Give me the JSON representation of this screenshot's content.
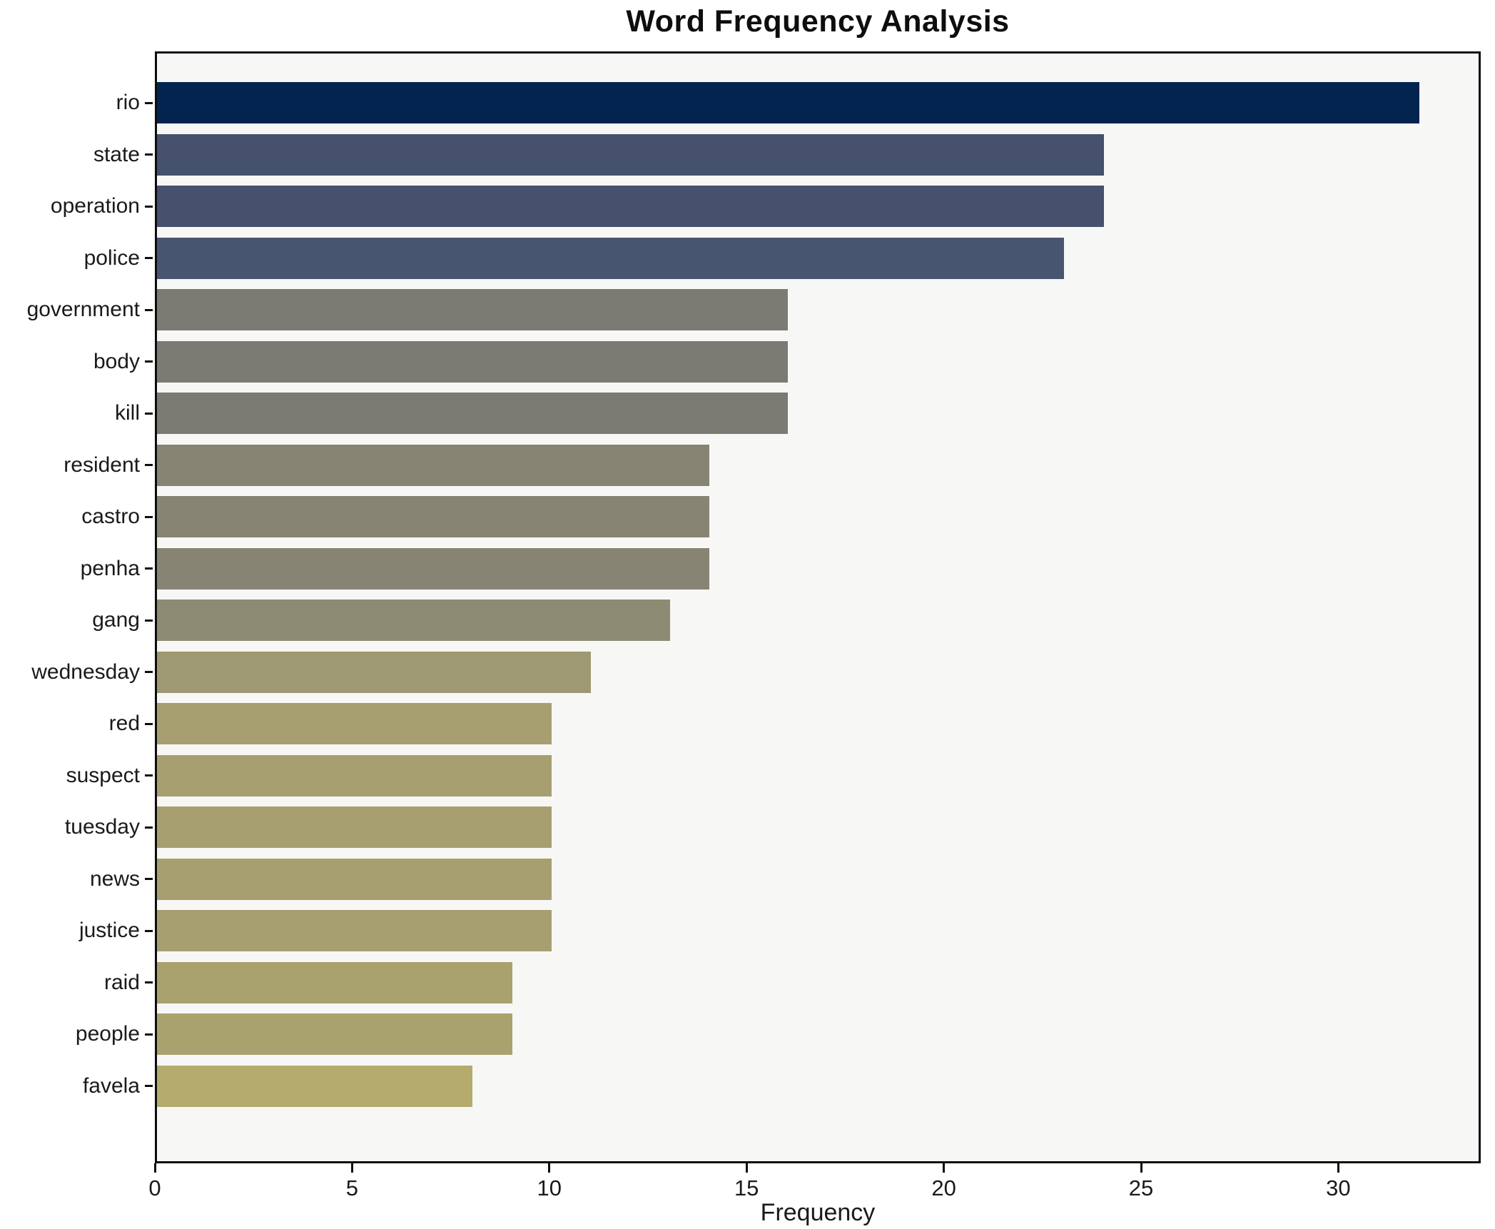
{
  "page": {
    "title": "Word Frequency Analysis"
  },
  "chart_data": {
    "type": "bar",
    "orientation": "horizontal",
    "title": "Word Frequency Analysis",
    "xlabel": "Frequency",
    "ylabel": "",
    "categories": [
      "rio",
      "state",
      "operation",
      "police",
      "government",
      "body",
      "kill",
      "resident",
      "castro",
      "penha",
      "gang",
      "wednesday",
      "red",
      "suspect",
      "tuesday",
      "news",
      "justice",
      "raid",
      "people",
      "favela"
    ],
    "values": [
      32,
      24,
      24,
      23,
      16,
      16,
      16,
      14,
      14,
      14,
      13,
      11,
      10,
      10,
      10,
      10,
      10,
      9,
      9,
      8
    ],
    "bar_colors": [
      "#02244e",
      "#45516d",
      "#45516d",
      "#475571",
      "#7b7a73",
      "#7b7a73",
      "#7b7a73",
      "#878473",
      "#878473",
      "#878473",
      "#8e8b74",
      "#9e9973",
      "#a79f70",
      "#a79f70",
      "#a79f70",
      "#a79f70",
      "#a79f70",
      "#aaa26e",
      "#aaa26e",
      "#b5ab6c"
    ],
    "xticks": [
      0,
      5,
      10,
      15,
      20,
      25,
      30
    ],
    "xlim": [
      0,
      33.6
    ],
    "grid": false,
    "legend": "none",
    "plot_background": "#f7f7f6",
    "spine_color": "#0e0e0e"
  }
}
